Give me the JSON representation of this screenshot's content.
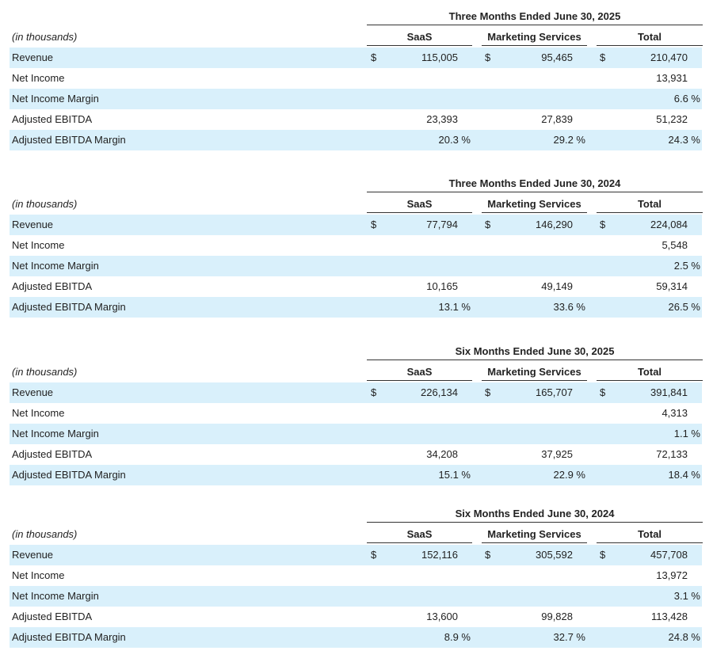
{
  "units_label": "(in thousands)",
  "column_headers": [
    "SaaS",
    "Marketing Services",
    "Total"
  ],
  "currency_symbol": "$",
  "sections": [
    {
      "period": "Three Months Ended June 30, 2025",
      "rows": [
        {
          "label": "Revenue",
          "saas": "115,005",
          "marketing": "95,465",
          "total": "210,470",
          "dollar": true
        },
        {
          "label": "Net Income",
          "saas": "",
          "marketing": "",
          "total": "13,931"
        },
        {
          "label": "Net Income Margin",
          "saas": "",
          "marketing": "",
          "total": "6.6 %"
        },
        {
          "label": "Adjusted EBITDA",
          "saas": "23,393",
          "marketing": "27,839",
          "total": "51,232"
        },
        {
          "label": "Adjusted EBITDA Margin",
          "saas": "20.3 %",
          "marketing": "29.2 %",
          "total": "24.3 %"
        }
      ]
    },
    {
      "period": "Three Months Ended June 30, 2024",
      "rows": [
        {
          "label": "Revenue",
          "saas": "77,794",
          "marketing": "146,290",
          "total": "224,084",
          "dollar": true
        },
        {
          "label": "Net Income",
          "saas": "",
          "marketing": "",
          "total": "5,548"
        },
        {
          "label": "Net Income Margin",
          "saas": "",
          "marketing": "",
          "total": "2.5 %"
        },
        {
          "label": "Adjusted EBITDA",
          "saas": "10,165",
          "marketing": "49,149",
          "total": "59,314"
        },
        {
          "label": "Adjusted EBITDA Margin",
          "saas": "13.1 %",
          "marketing": "33.6 %",
          "total": "26.5 %"
        }
      ]
    },
    {
      "period": "Six Months Ended June 30, 2025",
      "rows": [
        {
          "label": "Revenue",
          "saas": "226,134",
          "marketing": "165,707",
          "total": "391,841",
          "dollar": true
        },
        {
          "label": "Net Income",
          "saas": "",
          "marketing": "",
          "total": "4,313"
        },
        {
          "label": "Net Income Margin",
          "saas": "",
          "marketing": "",
          "total": "1.1 %"
        },
        {
          "label": "Adjusted EBITDA",
          "saas": "34,208",
          "marketing": "37,925",
          "total": "72,133"
        },
        {
          "label": "Adjusted EBITDA Margin",
          "saas": "15.1 %",
          "marketing": "22.9 %",
          "total": "18.4 %"
        }
      ]
    },
    {
      "period": "Six Months Ended June 30, 2024",
      "rows": [
        {
          "label": "Revenue",
          "saas": "152,116",
          "marketing": "305,592",
          "total": "457,708",
          "dollar": true
        },
        {
          "label": "Net Income",
          "saas": "",
          "marketing": "",
          "total": "13,972"
        },
        {
          "label": "Net Income Margin",
          "saas": "",
          "marketing": "",
          "total": "3.1 %"
        },
        {
          "label": "Adjusted EBITDA",
          "saas": "13,600",
          "marketing": "99,828",
          "total": "113,428"
        },
        {
          "label": "Adjusted EBITDA Margin",
          "saas": "8.9 %",
          "marketing": "32.7 %",
          "total": "24.8 %"
        }
      ]
    }
  ],
  "colors": {
    "row_shade": "#d9f0fb",
    "rule": "#333333",
    "text": "#222222"
  }
}
